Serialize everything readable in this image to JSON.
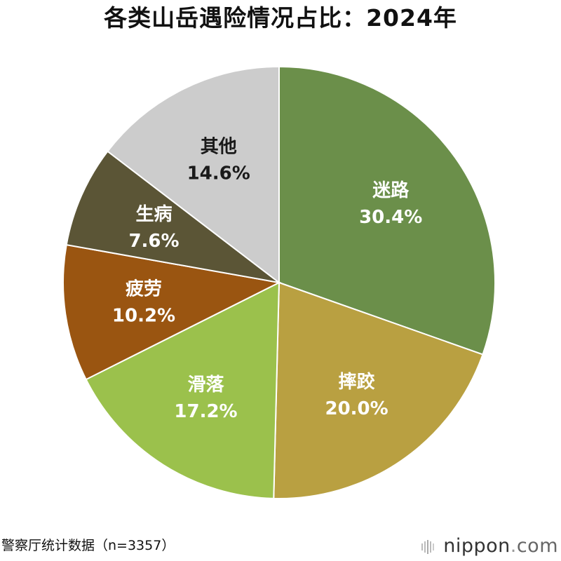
{
  "chart_data": {
    "type": "pie",
    "title": "各类山岳遇险情况占比：2024年",
    "slices": [
      {
        "label": "迷路",
        "value": 30.4,
        "display": "30.4%",
        "color": "#6b8f4a",
        "text_color": "#ffffff"
      },
      {
        "label": "摔跤",
        "value": 20.0,
        "display": "20.0%",
        "color": "#b9a041",
        "text_color": "#ffffff"
      },
      {
        "label": "滑落",
        "value": 17.2,
        "display": "17.2%",
        "color": "#9bc14c",
        "text_color": "#ffffff"
      },
      {
        "label": "疲劳",
        "value": 10.2,
        "display": "10.2%",
        "color": "#9a5511",
        "text_color": "#ffffff"
      },
      {
        "label": "生病",
        "value": 7.6,
        "display": "7.6%",
        "color": "#5b5536",
        "text_color": "#ffffff"
      },
      {
        "label": "其他",
        "value": 14.6,
        "display": "14.6%",
        "color": "#cccccc",
        "text_color": "#1a1a1a"
      }
    ],
    "start": "12 o'clock",
    "direction": "clockwise",
    "legend": "none"
  },
  "footer": {
    "source": "警察厅统计数据（n=3357）",
    "brand_name": "nippon",
    "brand_dot": ".",
    "brand_tld": "com",
    "brand_icon": "bars-logo-icon"
  }
}
